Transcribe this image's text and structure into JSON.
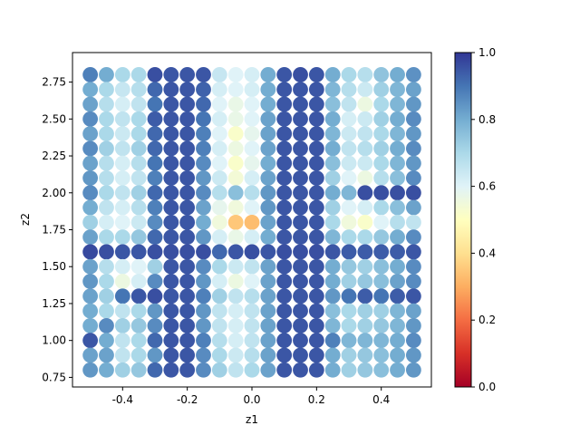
{
  "chart_data": {
    "type": "scatter",
    "title": "",
    "xlabel": "z1",
    "ylabel": "z2",
    "xlim": [
      -0.555,
      0.555
    ],
    "ylim": [
      0.685,
      2.95
    ],
    "xticks": [
      "-0.4",
      "-0.2",
      "0.0",
      "0.2",
      "0.4"
    ],
    "xtick_values": [
      -0.4,
      -0.2,
      0.0,
      0.2,
      0.4
    ],
    "yticks": [
      "0.75",
      "1.00",
      "1.25",
      "1.50",
      "1.75",
      "2.00",
      "2.25",
      "2.50",
      "2.75"
    ],
    "ytick_values": [
      0.75,
      1.0,
      1.25,
      1.5,
      1.75,
      2.0,
      2.25,
      2.5,
      2.75
    ],
    "x": [
      -0.5,
      -0.45,
      -0.4,
      -0.35,
      -0.3,
      -0.25,
      -0.2,
      -0.15,
      -0.1,
      -0.05,
      0.0,
      0.05,
      0.1,
      0.15,
      0.2,
      0.25,
      0.3,
      0.35,
      0.4,
      0.45,
      0.5
    ],
    "y": [
      2.8,
      2.7,
      2.6,
      2.5,
      2.4,
      2.3,
      2.2,
      2.1,
      2.0,
      1.9,
      1.8,
      1.7,
      1.6,
      1.5,
      1.4,
      1.3,
      1.2,
      1.1,
      1.0,
      0.9,
      0.8
    ],
    "color_values": [
      [
        0.88,
        0.8,
        0.7,
        0.7,
        0.96,
        0.95,
        0.95,
        0.95,
        0.65,
        0.6,
        0.62,
        0.8,
        0.95,
        0.96,
        0.95,
        0.8,
        0.7,
        0.68,
        0.75,
        0.8,
        0.85
      ],
      [
        0.8,
        0.7,
        0.65,
        0.68,
        0.92,
        0.95,
        0.95,
        0.93,
        0.62,
        0.6,
        0.62,
        0.8,
        0.95,
        0.95,
        0.95,
        0.78,
        0.68,
        0.64,
        0.72,
        0.78,
        0.82
      ],
      [
        0.82,
        0.68,
        0.62,
        0.66,
        0.9,
        0.95,
        0.95,
        0.92,
        0.6,
        0.57,
        0.6,
        0.8,
        0.95,
        0.95,
        0.95,
        0.76,
        0.66,
        0.56,
        0.7,
        0.78,
        0.84
      ],
      [
        0.86,
        0.7,
        0.66,
        0.7,
        0.94,
        0.95,
        0.95,
        0.9,
        0.62,
        0.57,
        0.6,
        0.82,
        0.95,
        0.95,
        0.95,
        0.8,
        0.62,
        0.64,
        0.72,
        0.8,
        0.86
      ],
      [
        0.82,
        0.7,
        0.64,
        0.7,
        0.92,
        0.95,
        0.95,
        0.88,
        0.6,
        0.52,
        0.58,
        0.82,
        0.95,
        0.95,
        0.95,
        0.78,
        0.64,
        0.66,
        0.7,
        0.78,
        0.84
      ],
      [
        0.86,
        0.72,
        0.66,
        0.72,
        0.92,
        0.95,
        0.95,
        0.88,
        0.62,
        0.56,
        0.6,
        0.82,
        0.95,
        0.95,
        0.95,
        0.8,
        0.66,
        0.68,
        0.72,
        0.8,
        0.86
      ],
      [
        0.82,
        0.68,
        0.62,
        0.68,
        0.9,
        0.95,
        0.95,
        0.86,
        0.6,
        0.52,
        0.58,
        0.8,
        0.95,
        0.95,
        0.95,
        0.76,
        0.64,
        0.64,
        0.7,
        0.78,
        0.84
      ],
      [
        0.84,
        0.68,
        0.62,
        0.66,
        0.88,
        0.95,
        0.95,
        0.84,
        0.64,
        0.54,
        0.62,
        0.82,
        0.95,
        0.95,
        0.95,
        0.72,
        0.6,
        0.56,
        0.68,
        0.76,
        0.86
      ],
      [
        0.86,
        0.7,
        0.66,
        0.72,
        0.92,
        0.95,
        0.95,
        0.86,
        0.68,
        0.76,
        0.68,
        0.84,
        0.95,
        0.95,
        0.95,
        0.8,
        0.78,
        0.96,
        0.96,
        0.96,
        0.96
      ],
      [
        0.8,
        0.66,
        0.62,
        0.68,
        0.88,
        0.95,
        0.95,
        0.82,
        0.58,
        0.55,
        0.6,
        0.84,
        0.95,
        0.95,
        0.95,
        0.72,
        0.6,
        0.62,
        0.7,
        0.76,
        0.82
      ],
      [
        0.72,
        0.62,
        0.6,
        0.64,
        0.86,
        0.95,
        0.95,
        0.8,
        0.55,
        0.35,
        0.33,
        0.82,
        0.95,
        0.95,
        0.95,
        0.7,
        0.55,
        0.52,
        0.6,
        0.68,
        0.66
      ],
      [
        0.82,
        0.7,
        0.7,
        0.74,
        0.92,
        0.95,
        0.95,
        0.84,
        0.62,
        0.57,
        0.62,
        0.8,
        0.95,
        0.95,
        0.95,
        0.78,
        0.7,
        0.7,
        0.74,
        0.8,
        0.86
      ],
      [
        0.97,
        0.96,
        0.95,
        0.95,
        0.96,
        0.96,
        0.96,
        0.96,
        0.92,
        0.95,
        0.96,
        0.95,
        0.96,
        0.96,
        0.96,
        0.95,
        0.94,
        0.94,
        0.94,
        0.94,
        0.95
      ],
      [
        0.82,
        0.68,
        0.62,
        0.6,
        0.72,
        0.95,
        0.95,
        0.86,
        0.7,
        0.64,
        0.66,
        0.82,
        0.95,
        0.95,
        0.95,
        0.8,
        0.74,
        0.72,
        0.76,
        0.8,
        0.86
      ],
      [
        0.84,
        0.7,
        0.56,
        0.62,
        0.86,
        0.95,
        0.95,
        0.84,
        0.62,
        0.56,
        0.6,
        0.82,
        0.95,
        0.95,
        0.95,
        0.8,
        0.72,
        0.74,
        0.76,
        0.82,
        0.86
      ],
      [
        0.82,
        0.72,
        0.9,
        0.95,
        0.96,
        0.95,
        0.95,
        0.88,
        0.72,
        0.66,
        0.68,
        0.82,
        0.95,
        0.95,
        0.95,
        0.84,
        0.9,
        0.94,
        0.9,
        0.94,
        0.95
      ],
      [
        0.8,
        0.7,
        0.66,
        0.7,
        0.84,
        0.95,
        0.95,
        0.84,
        0.66,
        0.62,
        0.66,
        0.82,
        0.95,
        0.95,
        0.95,
        0.76,
        0.7,
        0.72,
        0.72,
        0.78,
        0.82
      ],
      [
        0.8,
        0.86,
        0.72,
        0.74,
        0.86,
        0.95,
        0.95,
        0.84,
        0.66,
        0.62,
        0.66,
        0.82,
        0.95,
        0.95,
        0.95,
        0.78,
        0.7,
        0.72,
        0.74,
        0.78,
        0.84
      ],
      [
        0.95,
        0.8,
        0.66,
        0.7,
        0.92,
        0.95,
        0.95,
        0.88,
        0.68,
        0.62,
        0.66,
        0.82,
        0.95,
        0.95,
        0.95,
        0.88,
        0.78,
        0.78,
        0.78,
        0.8,
        0.86
      ],
      [
        0.82,
        0.82,
        0.66,
        0.7,
        0.84,
        0.95,
        0.95,
        0.86,
        0.7,
        0.64,
        0.68,
        0.82,
        0.95,
        0.95,
        0.95,
        0.8,
        0.72,
        0.74,
        0.76,
        0.8,
        0.84
      ],
      [
        0.84,
        0.8,
        0.72,
        0.74,
        0.92,
        0.95,
        0.95,
        0.86,
        0.72,
        0.66,
        0.7,
        0.82,
        0.95,
        0.95,
        0.95,
        0.8,
        0.72,
        0.74,
        0.76,
        0.8,
        0.84
      ]
    ],
    "colormap": "RdYlBu",
    "colorbar": {
      "range": [
        0.0,
        1.0
      ],
      "ticks": [
        "0.0",
        "0.2",
        "0.4",
        "0.6",
        "0.8",
        "1.0"
      ],
      "tick_values": [
        0.0,
        0.2,
        0.4,
        0.6,
        0.8,
        1.0
      ]
    },
    "colormap_stops": [
      "#a50026",
      "#d73027",
      "#f46d43",
      "#fdae61",
      "#fee090",
      "#ffffbf",
      "#e0f3f8",
      "#abd9e9",
      "#74add1",
      "#4575b4",
      "#313695"
    ],
    "grid": false,
    "legend": false
  }
}
